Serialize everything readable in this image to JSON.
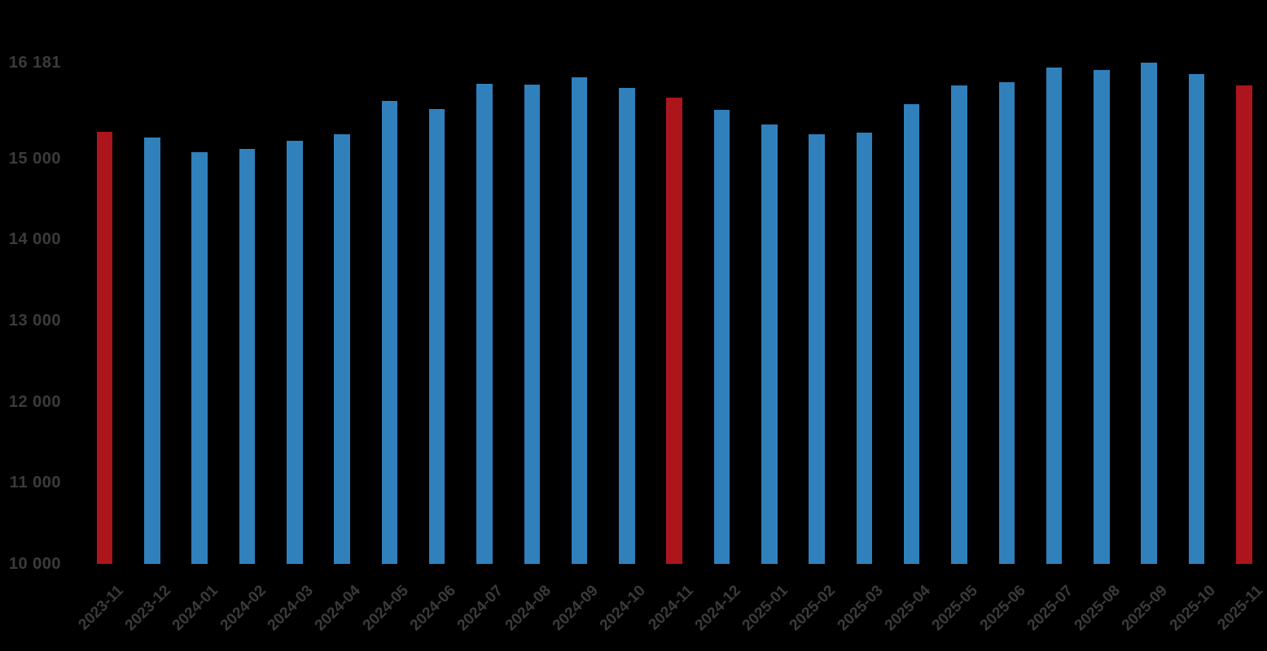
{
  "chart_data": {
    "type": "bar",
    "title": "",
    "xlabel": "",
    "ylabel": "",
    "grid": false,
    "legend": null,
    "background_color": "#000000",
    "text_color": "#3b3b3b",
    "bar_color": "#3080BC",
    "highlight_color": "#AD151C",
    "highlight_categories": [
      "2023-11",
      "2024-11",
      "2025-11"
    ],
    "ylim": [
      10000,
      16181
    ],
    "y_ticks": [
      {
        "label": "16 181",
        "value": 16181
      },
      {
        "label": "15 000",
        "value": 15000
      },
      {
        "label": "14 000",
        "value": 14000
      },
      {
        "label": "13 000",
        "value": 13000
      },
      {
        "label": "12 000",
        "value": 12000
      },
      {
        "label": "11 000",
        "value": 11000
      },
      {
        "label": "10 000",
        "value": 10000
      }
    ],
    "categories": [
      "2023-11",
      "2023-12",
      "2024-01",
      "2024-02",
      "2024-03",
      "2024-04",
      "2024-05",
      "2024-06",
      "2024-07",
      "2024-08",
      "2024-09",
      "2024-10",
      "2024-11",
      "2024-12",
      "2025-01",
      "2025-02",
      "2025-03",
      "2025-04",
      "2025-05",
      "2025-06",
      "2025-07",
      "2025-08",
      "2025-09",
      "2025-10",
      "2025-11"
    ],
    "values": [
      15330,
      15260,
      15080,
      15120,
      15220,
      15300,
      15710,
      15610,
      15920,
      15910,
      16000,
      15870,
      15750,
      15600,
      15420,
      15300,
      15320,
      15670,
      15900,
      15940,
      16120,
      16090,
      16181,
      16040,
      15900
    ]
  }
}
